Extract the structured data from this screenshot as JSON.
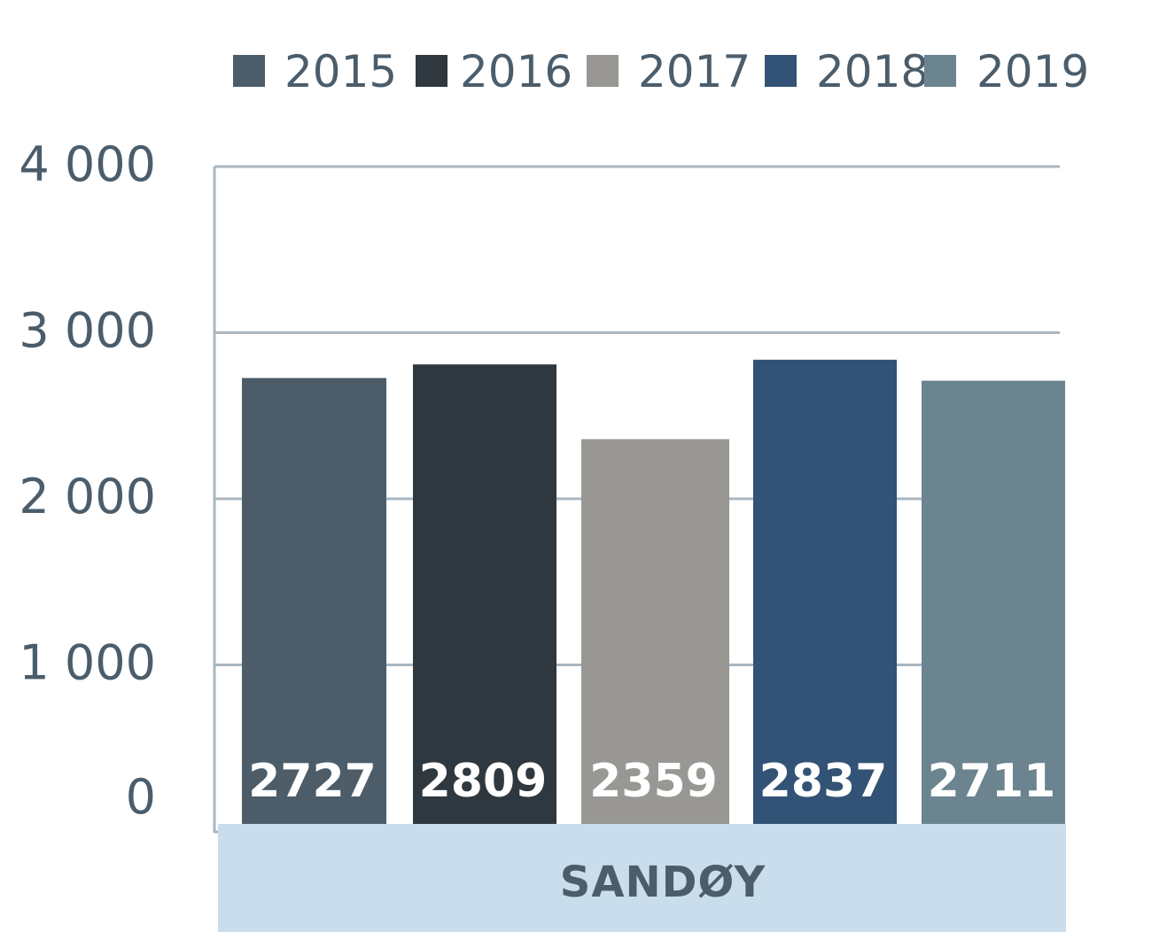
{
  "chart_data": {
    "type": "bar",
    "categories": [
      "SANDØY"
    ],
    "series": [
      {
        "name": "2015",
        "values": [
          2727
        ],
        "label": "2727",
        "color": "#4c5d69"
      },
      {
        "name": "2016",
        "values": [
          2809
        ],
        "label": "2809",
        "color": "#2e383e"
      },
      {
        "name": "2017",
        "values": [
          2359
        ],
        "label": "2359",
        "color": "#989794"
      },
      {
        "name": "2018",
        "values": [
          2837
        ],
        "label": "2837",
        "color": "#325375"
      },
      {
        "name": "2019",
        "values": [
          2711
        ],
        "label": "2711",
        "color": "#6c8390"
      }
    ],
    "yticks": [
      {
        "value": 0,
        "label": "0"
      },
      {
        "value": 1000,
        "label": "1 000"
      },
      {
        "value": 2000,
        "label": "2 000"
      },
      {
        "value": 3000,
        "label": "3 000"
      },
      {
        "value": 4000,
        "label": "4 000"
      }
    ],
    "ylim": [
      0,
      4000
    ],
    "grid": true,
    "legend": "top",
    "colors": {
      "grid": "#a9b7c1",
      "axis": "#a9b7c1",
      "category_band": "#c9ddec",
      "text": "#4b5d6b",
      "value_label": "#ffffff"
    }
  }
}
